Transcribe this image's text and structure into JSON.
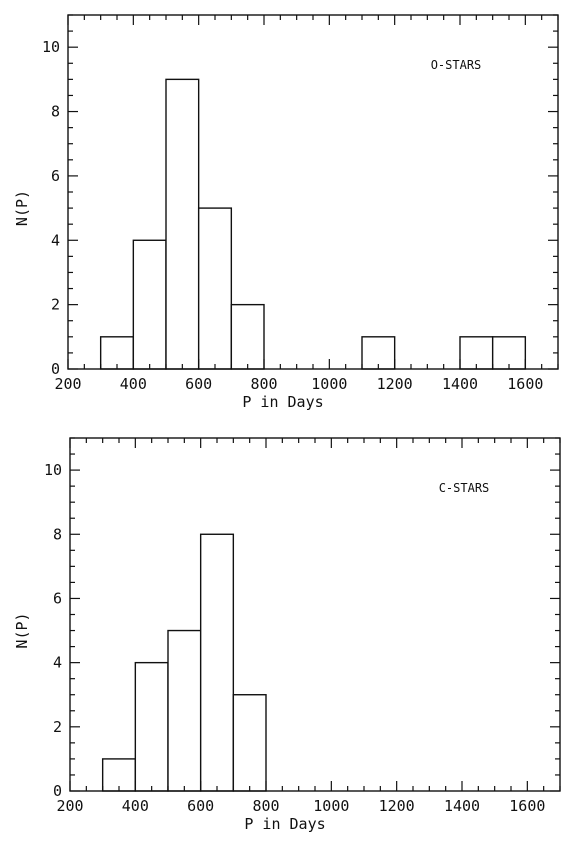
{
  "chart_data": [
    {
      "type": "bar",
      "subtype": "histogram",
      "annotation": "O-STARS",
      "xlabel": "P in Days",
      "ylabel": "N(P)",
      "xlim": [
        200,
        1700
      ],
      "ylim": [
        0,
        11
      ],
      "xticks": [
        200,
        400,
        600,
        800,
        1000,
        1200,
        1400,
        1600
      ],
      "yticks": [
        0,
        2,
        4,
        6,
        8,
        10
      ],
      "bins": [
        {
          "x0": 300,
          "x1": 400,
          "value": 1
        },
        {
          "x0": 400,
          "x1": 500,
          "value": 4
        },
        {
          "x0": 500,
          "x1": 600,
          "value": 9
        },
        {
          "x0": 600,
          "x1": 700,
          "value": 5
        },
        {
          "x0": 700,
          "x1": 800,
          "value": 2
        },
        {
          "x0": 1100,
          "x1": 1200,
          "value": 1
        },
        {
          "x0": 1400,
          "x1": 1500,
          "value": 1
        },
        {
          "x0": 1500,
          "x1": 1600,
          "value": 1
        }
      ]
    },
    {
      "type": "bar",
      "subtype": "histogram",
      "annotation": "C-STARS",
      "xlabel": "P in Days",
      "ylabel": "N(P)",
      "xlim": [
        200,
        1700
      ],
      "ylim": [
        0,
        11
      ],
      "xticks": [
        200,
        400,
        600,
        800,
        1000,
        1200,
        1400,
        1600
      ],
      "yticks": [
        0,
        2,
        4,
        6,
        8,
        10
      ],
      "bins": [
        {
          "x0": 300,
          "x1": 400,
          "value": 1
        },
        {
          "x0": 400,
          "x1": 500,
          "value": 4
        },
        {
          "x0": 500,
          "x1": 600,
          "value": 5
        },
        {
          "x0": 600,
          "x1": 700,
          "value": 8
        },
        {
          "x0": 700,
          "x1": 800,
          "value": 3
        }
      ]
    }
  ]
}
